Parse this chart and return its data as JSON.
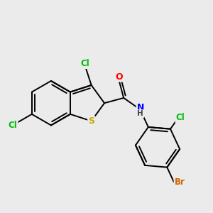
{
  "background_color": "#ebebeb",
  "bond_color": "#000000",
  "bond_width": 1.4,
  "atom_colors": {
    "Cl": "#00bb00",
    "S": "#ccaa00",
    "N": "#0000ff",
    "O": "#ff0000",
    "Br": "#cc6600",
    "C": "#000000",
    "H": "#444444"
  },
  "figsize": [
    3.0,
    3.0
  ],
  "dpi": 100
}
